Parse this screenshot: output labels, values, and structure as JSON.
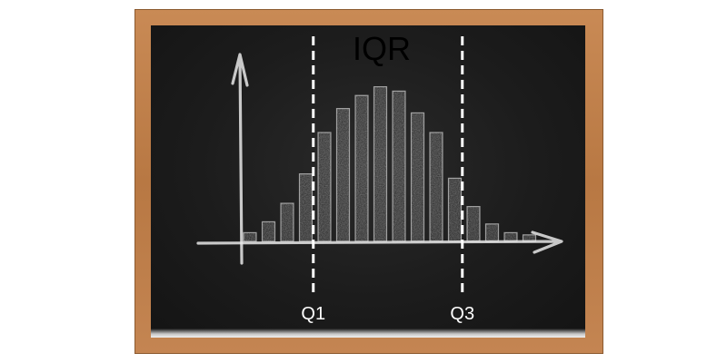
{
  "chart_data": {
    "type": "bar",
    "title": "IQR",
    "xlabel": "",
    "ylabel": "",
    "values": [
      0.8,
      1.8,
      3.5,
      6.2,
      10.0,
      12.2,
      13.4,
      14.2,
      13.8,
      11.8,
      10.0,
      5.8,
      3.2,
      1.6,
      0.8,
      0.6
    ],
    "ylim": [
      0,
      16
    ],
    "grid": false,
    "markers": [
      {
        "label": "Q1",
        "after_bar": 3.5
      },
      {
        "label": "Q3",
        "after_bar": 11.5
      }
    ]
  },
  "colors": {
    "board": "#1c1c1c",
    "chalk": "#e8e8e8",
    "frame": "#c08050",
    "dashed_line": "#ffffff",
    "marker_label": "#ffffff",
    "title": "#000000"
  }
}
